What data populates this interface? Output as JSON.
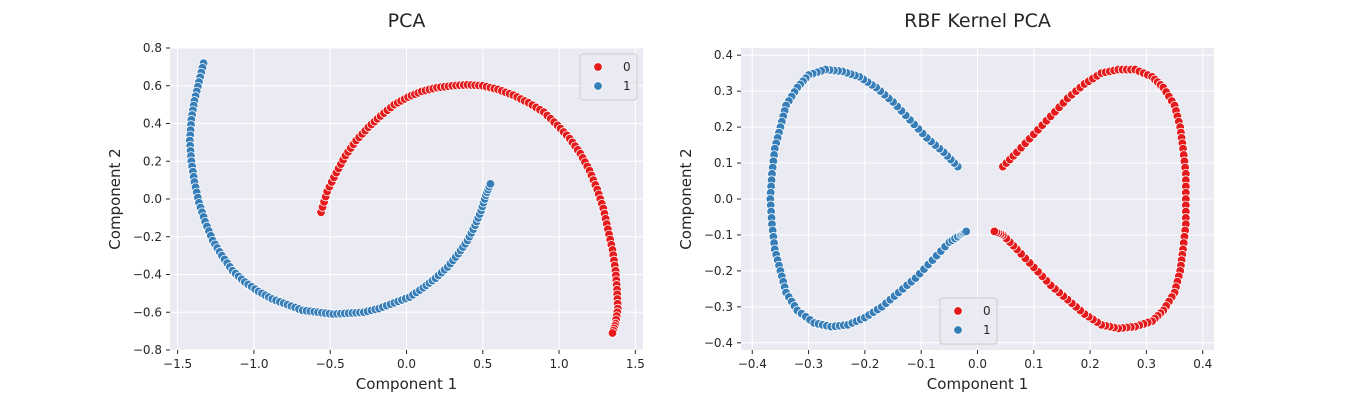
{
  "chart_data": [
    {
      "type": "scatter",
      "title": "PCA",
      "xlabel": "Component 1",
      "ylabel": "Component 2",
      "xlim": [
        -1.55,
        1.55
      ],
      "ylim": [
        -0.8,
        0.8
      ],
      "xticks": [
        -1.5,
        -1.0,
        -0.5,
        0.0,
        0.5,
        1.0,
        1.5
      ],
      "xtick_labels": [
        "−1.5",
        "−1.0",
        "−0.5",
        "0.0",
        "0.5",
        "1.0",
        "1.5"
      ],
      "yticks": [
        -0.8,
        -0.6,
        -0.4,
        -0.2,
        0.0,
        0.2,
        0.4,
        0.6,
        0.8
      ],
      "ytick_labels": [
        "−0.8",
        "−0.6",
        "−0.4",
        "−0.2",
        "0.0",
        "0.2",
        "0.4",
        "0.6",
        "0.8"
      ],
      "grid": true,
      "legend_position": "top-right",
      "series": [
        {
          "name": "0",
          "color": "#e41a1c",
          "points": [
            [
              -0.56,
              -0.07
            ],
            [
              -0.52,
              0.04
            ],
            [
              -0.46,
              0.14
            ],
            [
              -0.4,
              0.23
            ],
            [
              -0.33,
              0.31
            ],
            [
              -0.25,
              0.38
            ],
            [
              -0.17,
              0.44
            ],
            [
              -0.08,
              0.5
            ],
            [
              0.01,
              0.54
            ],
            [
              0.1,
              0.57
            ],
            [
              0.2,
              0.59
            ],
            [
              0.3,
              0.6
            ],
            [
              0.4,
              0.605
            ],
            [
              0.5,
              0.6
            ],
            [
              0.6,
              0.58
            ],
            [
              0.7,
              0.55
            ],
            [
              0.8,
              0.51
            ],
            [
              0.9,
              0.46
            ],
            [
              0.99,
              0.39
            ],
            [
              1.07,
              0.32
            ],
            [
              1.14,
              0.24
            ],
            [
              1.2,
              0.15
            ],
            [
              1.25,
              0.05
            ],
            [
              1.29,
              -0.05
            ],
            [
              1.32,
              -0.16
            ],
            [
              1.35,
              -0.27
            ],
            [
              1.37,
              -0.38
            ],
            [
              1.38,
              -0.48
            ],
            [
              1.385,
              -0.58
            ],
            [
              1.37,
              -0.66
            ],
            [
              1.35,
              -0.71
            ]
          ]
        },
        {
          "name": "1",
          "color": "#377eb8",
          "points": [
            [
              -1.33,
              0.72
            ],
            [
              -1.36,
              0.62
            ],
            [
              -1.39,
              0.52
            ],
            [
              -1.41,
              0.42
            ],
            [
              -1.42,
              0.31
            ],
            [
              -1.41,
              0.2
            ],
            [
              -1.39,
              0.09
            ],
            [
              -1.36,
              -0.02
            ],
            [
              -1.32,
              -0.12
            ],
            [
              -1.27,
              -0.22
            ],
            [
              -1.21,
              -0.3
            ],
            [
              -1.14,
              -0.38
            ],
            [
              -1.06,
              -0.44
            ],
            [
              -0.97,
              -0.49
            ],
            [
              -0.88,
              -0.53
            ],
            [
              -0.78,
              -0.56
            ],
            [
              -0.68,
              -0.59
            ],
            [
              -0.58,
              -0.6
            ],
            [
              -0.48,
              -0.61
            ],
            [
              -0.38,
              -0.605
            ],
            [
              -0.28,
              -0.6
            ],
            [
              -0.18,
              -0.58
            ],
            [
              -0.08,
              -0.55
            ],
            [
              0.02,
              -0.52
            ],
            [
              0.11,
              -0.47
            ],
            [
              0.19,
              -0.42
            ],
            [
              0.27,
              -0.36
            ],
            [
              0.34,
              -0.29
            ],
            [
              0.4,
              -0.22
            ],
            [
              0.45,
              -0.14
            ],
            [
              0.49,
              -0.06
            ],
            [
              0.52,
              0.02
            ],
            [
              0.55,
              0.08
            ]
          ]
        }
      ]
    },
    {
      "type": "scatter",
      "title": "RBF Kernel PCA",
      "xlabel": "Component 1",
      "ylabel": "Component 2",
      "xlim": [
        -0.42,
        0.42
      ],
      "ylim": [
        -0.42,
        0.42
      ],
      "xticks": [
        -0.4,
        -0.3,
        -0.2,
        -0.1,
        0.0,
        0.1,
        0.2,
        0.3,
        0.4
      ],
      "xtick_labels": [
        "−0.4",
        "−0.3",
        "−0.2",
        "−0.1",
        "0.0",
        "0.1",
        "0.2",
        "0.3",
        "0.4"
      ],
      "yticks": [
        -0.4,
        -0.3,
        -0.2,
        -0.1,
        0.0,
        0.1,
        0.2,
        0.3,
        0.4
      ],
      "ytick_labels": [
        "−0.4",
        "−0.3",
        "−0.2",
        "−0.1",
        "0.0",
        "0.1",
        "0.2",
        "0.3",
        "0.4"
      ],
      "grid": true,
      "legend_position": "bottom-center",
      "series": [
        {
          "name": "0",
          "color": "#e41a1c",
          "points": [
            [
              0.045,
              0.09
            ],
            [
              0.07,
              0.13
            ],
            [
              0.1,
              0.18
            ],
            [
              0.13,
              0.23
            ],
            [
              0.16,
              0.28
            ],
            [
              0.19,
              0.32
            ],
            [
              0.22,
              0.35
            ],
            [
              0.25,
              0.36
            ],
            [
              0.28,
              0.36
            ],
            [
              0.31,
              0.34
            ],
            [
              0.33,
              0.31
            ],
            [
              0.35,
              0.26
            ],
            [
              0.36,
              0.2
            ],
            [
              0.365,
              0.14
            ],
            [
              0.37,
              0.07
            ],
            [
              0.37,
              0.0
            ],
            [
              0.37,
              -0.07
            ],
            [
              0.365,
              -0.14
            ],
            [
              0.36,
              -0.2
            ],
            [
              0.35,
              -0.26
            ],
            [
              0.33,
              -0.31
            ],
            [
              0.31,
              -0.34
            ],
            [
              0.28,
              -0.355
            ],
            [
              0.25,
              -0.36
            ],
            [
              0.22,
              -0.35
            ],
            [
              0.19,
              -0.32
            ],
            [
              0.16,
              -0.28
            ],
            [
              0.13,
              -0.24
            ],
            [
              0.1,
              -0.19
            ],
            [
              0.07,
              -0.14
            ],
            [
              0.045,
              -0.1
            ],
            [
              0.03,
              -0.09
            ]
          ]
        },
        {
          "name": "1",
          "color": "#377eb8",
          "points": [
            [
              -0.035,
              0.09
            ],
            [
              -0.06,
              0.13
            ],
            [
              -0.09,
              0.17
            ],
            [
              -0.12,
              0.22
            ],
            [
              -0.15,
              0.27
            ],
            [
              -0.18,
              0.31
            ],
            [
              -0.21,
              0.34
            ],
            [
              -0.24,
              0.355
            ],
            [
              -0.27,
              0.36
            ],
            [
              -0.3,
              0.345
            ],
            [
              -0.32,
              0.31
            ],
            [
              -0.34,
              0.26
            ],
            [
              -0.35,
              0.2
            ],
            [
              -0.36,
              0.14
            ],
            [
              -0.365,
              0.07
            ],
            [
              -0.368,
              0.0
            ],
            [
              -0.365,
              -0.07
            ],
            [
              -0.36,
              -0.14
            ],
            [
              -0.35,
              -0.2
            ],
            [
              -0.34,
              -0.26
            ],
            [
              -0.32,
              -0.31
            ],
            [
              -0.29,
              -0.345
            ],
            [
              -0.26,
              -0.355
            ],
            [
              -0.23,
              -0.35
            ],
            [
              -0.2,
              -0.33
            ],
            [
              -0.17,
              -0.3
            ],
            [
              -0.14,
              -0.26
            ],
            [
              -0.11,
              -0.22
            ],
            [
              -0.08,
              -0.17
            ],
            [
              -0.05,
              -0.12
            ],
            [
              -0.03,
              -0.1
            ],
            [
              -0.02,
              -0.09
            ]
          ]
        }
      ]
    }
  ]
}
